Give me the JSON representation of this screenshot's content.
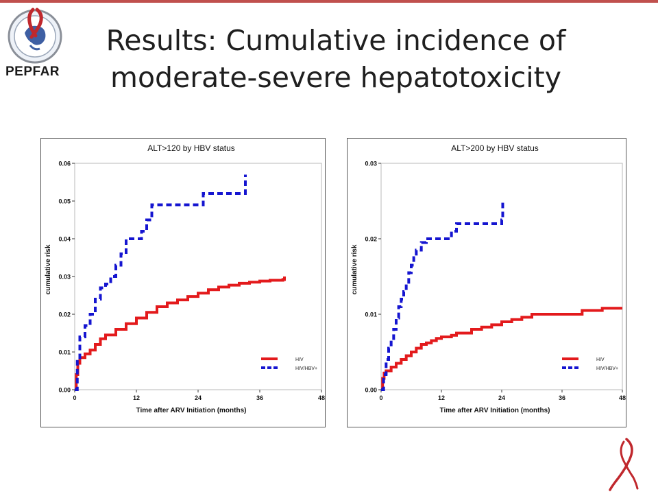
{
  "slide": {
    "title_line1": "Results: Cumulative incidence of",
    "title_line2": "moderate-severe hepatotoxicity",
    "logo_text": "PEPFAR",
    "colors": {
      "accent_bar": "#c0504d",
      "ribbon": "#c0282d"
    }
  },
  "chart_data": [
    {
      "type": "line",
      "step": true,
      "title": "ALT>120 by HBV status",
      "xlabel": "Time after ARV Initiation (months)",
      "ylabel": "cumulative risk",
      "xlim": [
        0,
        48
      ],
      "ylim": [
        0,
        0.06
      ],
      "xticks": [
        0,
        12,
        24,
        36,
        48
      ],
      "xtick_labels": [
        "0",
        "12",
        "24",
        "36",
        "48"
      ],
      "yticks": [
        0,
        0.01,
        0.02,
        0.03,
        0.04,
        0.05,
        0.06
      ],
      "ytick_labels": [
        "0.00",
        "0.01",
        "0.02",
        "0.03",
        "0.04",
        "0.05",
        "0.06"
      ],
      "grid": false,
      "legend_position": "bottom-right",
      "series": [
        {
          "name": "HIV",
          "color": "#e31a1c",
          "dash": "solid",
          "x": [
            0,
            0.3,
            0.6,
            1,
            2,
            3,
            4,
            5,
            6,
            8,
            10,
            12,
            14,
            16,
            18,
            20,
            22,
            24,
            26,
            28,
            30,
            32,
            34,
            36,
            38,
            40.5,
            40.8
          ],
          "y": [
            0,
            0.004,
            0.007,
            0.0085,
            0.0095,
            0.0105,
            0.012,
            0.0135,
            0.0145,
            0.016,
            0.0175,
            0.019,
            0.0205,
            0.022,
            0.023,
            0.0238,
            0.0247,
            0.0256,
            0.0265,
            0.0272,
            0.0277,
            0.0282,
            0.0285,
            0.0288,
            0.029,
            0.0292,
            0.03
          ]
        },
        {
          "name": "HIV/HBV+",
          "color": "#1515d0",
          "dash": "dashed",
          "x": [
            0,
            0.5,
            1,
            2,
            3,
            4,
            5,
            6,
            7,
            8,
            9,
            10,
            12,
            13,
            14,
            15,
            16,
            18,
            20,
            22,
            24,
            25,
            27,
            30,
            33,
            33.2
          ],
          "y": [
            0,
            0.008,
            0.014,
            0.017,
            0.02,
            0.024,
            0.027,
            0.028,
            0.03,
            0.033,
            0.036,
            0.04,
            0.04,
            0.042,
            0.045,
            0.049,
            0.049,
            0.049,
            0.049,
            0.049,
            0.049,
            0.052,
            0.052,
            0.052,
            0.052,
            0.057
          ]
        }
      ]
    },
    {
      "type": "line",
      "step": true,
      "title": "ALT>200 by HBV status",
      "xlabel": "Time after ARV Initiation (months)",
      "ylabel": "cumulative risk",
      "xlim": [
        0,
        48
      ],
      "ylim": [
        0,
        0.03
      ],
      "xticks": [
        0,
        12,
        24,
        36,
        48
      ],
      "xtick_labels": [
        "0",
        "12",
        "24",
        "36",
        "48"
      ],
      "yticks": [
        0,
        0.01,
        0.02,
        0.03
      ],
      "ytick_labels": [
        "0.00",
        "0.01",
        "0.02",
        "0.03"
      ],
      "grid": false,
      "legend_position": "bottom-right",
      "series": [
        {
          "name": "HIV",
          "color": "#e31a1c",
          "dash": "solid",
          "x": [
            0,
            0.3,
            0.6,
            1,
            2,
            3,
            4,
            5,
            6,
            7,
            8,
            9,
            10,
            11,
            12,
            14,
            15,
            18,
            20,
            22,
            24,
            26,
            28,
            30,
            36,
            40,
            44,
            48
          ],
          "y": [
            0,
            0.0015,
            0.0022,
            0.0025,
            0.003,
            0.0035,
            0.004,
            0.0045,
            0.005,
            0.0055,
            0.006,
            0.0062,
            0.0065,
            0.0068,
            0.007,
            0.0072,
            0.0075,
            0.008,
            0.0083,
            0.0086,
            0.009,
            0.0093,
            0.0096,
            0.01,
            0.01,
            0.0105,
            0.0108,
            0.0108
          ]
        },
        {
          "name": "HIV/HBV+",
          "color": "#1515d0",
          "dash": "dashed",
          "x": [
            0,
            0.5,
            1,
            1.5,
            2,
            2.5,
            3,
            3.5,
            4,
            4.5,
            5,
            5.5,
            6,
            6.5,
            7,
            8,
            9,
            12,
            14,
            15,
            18,
            22,
            24,
            24.2
          ],
          "y": [
            0,
            0.002,
            0.004,
            0.0055,
            0.0065,
            0.008,
            0.0095,
            0.011,
            0.012,
            0.013,
            0.014,
            0.0155,
            0.0165,
            0.0175,
            0.0185,
            0.0195,
            0.02,
            0.02,
            0.021,
            0.022,
            0.022,
            0.022,
            0.0225,
            0.025
          ]
        }
      ]
    }
  ]
}
